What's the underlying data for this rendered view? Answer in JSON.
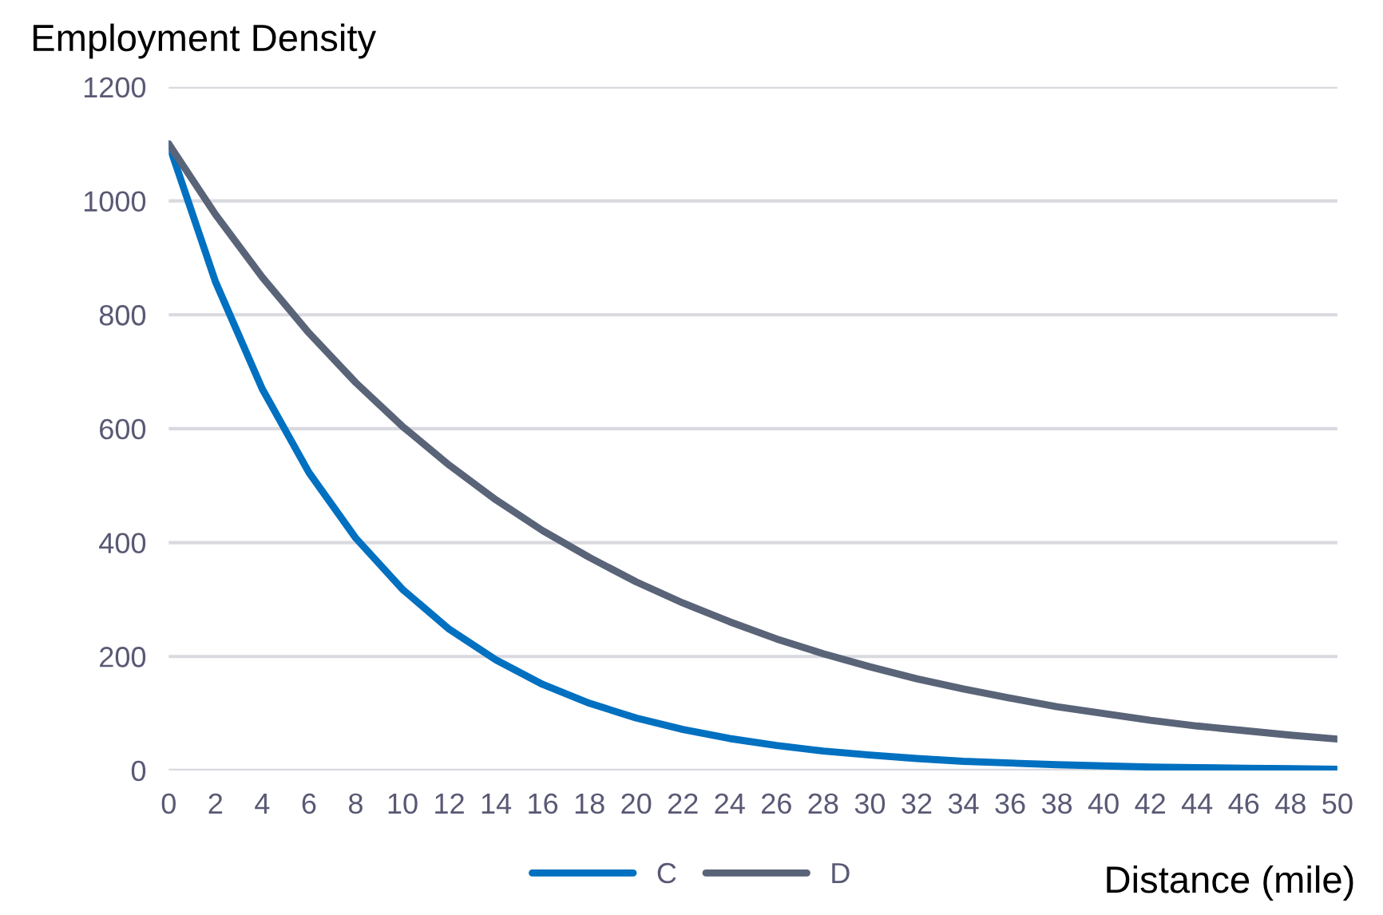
{
  "chart_data": {
    "type": "line",
    "ylabel": "Employment Density",
    "xlabel": "Distance (mile)",
    "x": [
      0,
      2,
      4,
      6,
      8,
      10,
      12,
      14,
      16,
      18,
      20,
      22,
      24,
      26,
      28,
      30,
      32,
      34,
      36,
      38,
      40,
      42,
      44,
      46,
      48,
      50
    ],
    "series": [
      {
        "name": "C",
        "color": "#0070c0",
        "values": [
          1100,
          858,
          670,
          523,
          408,
          318,
          248,
          194,
          151,
          118,
          92,
          72,
          56,
          44,
          34,
          27,
          21,
          16,
          13,
          10,
          8,
          6,
          5,
          4,
          3,
          2
        ]
      },
      {
        "name": "D",
        "color": "#5a6478",
        "values": [
          1100,
          976,
          866,
          768,
          681,
          604,
          536,
          475,
          421,
          374,
          331,
          294,
          261,
          231,
          205,
          182,
          161,
          143,
          127,
          112,
          100,
          88,
          78,
          70,
          62,
          55
        ]
      }
    ],
    "xlim": [
      0,
      50
    ],
    "ylim": [
      0,
      1200
    ],
    "xticks": [
      0,
      2,
      4,
      6,
      8,
      10,
      12,
      14,
      16,
      18,
      20,
      22,
      24,
      26,
      28,
      30,
      32,
      34,
      36,
      38,
      40,
      42,
      44,
      46,
      48,
      50
    ],
    "yticks": [
      0,
      200,
      400,
      600,
      800,
      1000,
      1200
    ],
    "grid": "y",
    "legend": "bottom",
    "marker": "none",
    "line_style": "solid"
  }
}
